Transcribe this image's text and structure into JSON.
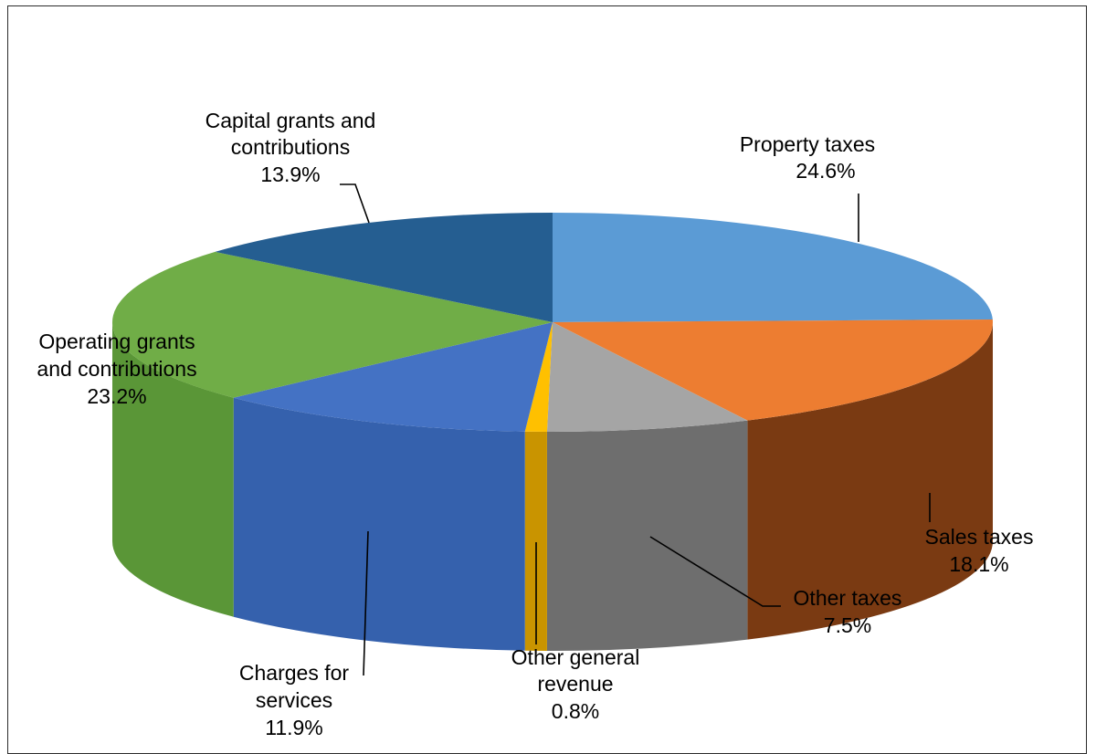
{
  "chart_data": {
    "type": "pie",
    "style": "3d",
    "unit": "%",
    "slices": [
      {
        "label": "Property taxes",
        "value": 24.6,
        "display": "24.6%",
        "color": "#5b9bd5",
        "side_color": "#2f5f8f"
      },
      {
        "label": "Sales taxes",
        "value": 18.1,
        "display": "18.1%",
        "color": "#ed7d31",
        "side_color": "#7a3a12"
      },
      {
        "label": "Other taxes",
        "value": 7.5,
        "display": "7.5%",
        "color": "#a5a5a5",
        "side_color": "#6e6e6e"
      },
      {
        "label": "Other general revenue",
        "value": 0.8,
        "display": "0.8%",
        "color": "#ffc000",
        "side_color": "#c99400"
      },
      {
        "label": "Charges for services",
        "value": 11.9,
        "display": "11.9%",
        "color": "#4472c4",
        "side_color": "#3561ad"
      },
      {
        "label": "Operating grants and contributions",
        "value": 23.2,
        "display": "23.2%",
        "color": "#70ad47",
        "side_color": "#5a9637"
      },
      {
        "label": "Capital grants and contributions",
        "value": 13.9,
        "display": "13.9%",
        "color": "#255e91",
        "side_color": "#1b4a73"
      }
    ],
    "legend": "none"
  }
}
